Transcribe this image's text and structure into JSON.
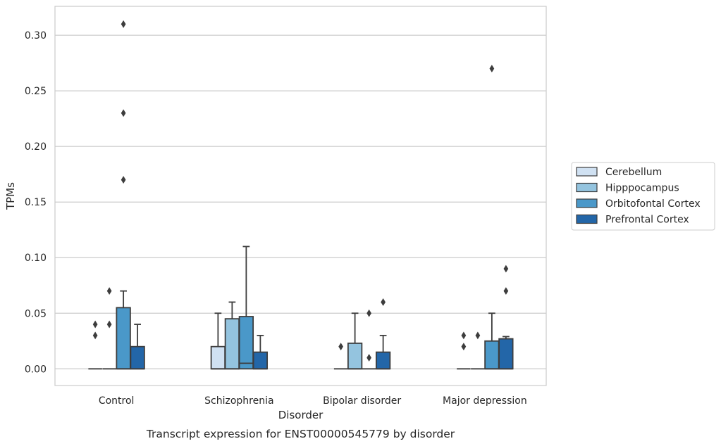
{
  "chart_data": {
    "type": "box",
    "xlabel": "Disorder",
    "ylabel": "TPMs",
    "caption": "Transcript expression for ENST00000545779 by disorder",
    "ylim": [
      -0.015,
      0.326
    ],
    "yticks": [
      "0.00",
      "0.05",
      "0.10",
      "0.15",
      "0.20",
      "0.25",
      "0.30"
    ],
    "grid": "horizontal",
    "legend_position": "right",
    "categories": [
      "Control",
      "Schizophrenia",
      "Bipolar disorder",
      "Major depression"
    ],
    "series": [
      {
        "name": "Cerebellum",
        "color": "#d0e1f2",
        "boxes": [
          {
            "whislo": 0,
            "q1": 0,
            "med": 0,
            "q3": 0,
            "whishi": 0,
            "fliers": [
              0.03,
              0.04
            ]
          },
          {
            "whislo": 0,
            "q1": 0,
            "med": 0,
            "q3": 0.02,
            "whishi": 0.05,
            "fliers": []
          },
          {
            "whislo": 0,
            "q1": 0,
            "med": 0,
            "q3": 0,
            "whishi": 0,
            "fliers": [
              0.02
            ]
          },
          {
            "whislo": 0,
            "q1": 0,
            "med": 0,
            "q3": 0,
            "whishi": 0,
            "fliers": [
              0.02,
              0.03
            ]
          }
        ]
      },
      {
        "name": "Hipppocampus",
        "color": "#94c4df",
        "boxes": [
          {
            "whislo": 0,
            "q1": 0,
            "med": 0,
            "q3": 0,
            "whishi": 0,
            "fliers": [
              0.04,
              0.07
            ]
          },
          {
            "whislo": 0,
            "q1": 0,
            "med": 0,
            "q3": 0.045,
            "whishi": 0.06,
            "fliers": []
          },
          {
            "whislo": 0,
            "q1": 0,
            "med": 0,
            "q3": 0.023,
            "whishi": 0.05,
            "fliers": []
          },
          {
            "whislo": 0,
            "q1": 0,
            "med": 0,
            "q3": 0,
            "whishi": 0,
            "fliers": [
              0.03
            ]
          }
        ]
      },
      {
        "name": "Orbitofontal Cortex",
        "color": "#4a98c9",
        "boxes": [
          {
            "whislo": 0,
            "q1": 0,
            "med": 0,
            "q3": 0.055,
            "whishi": 0.07,
            "fliers": [
              0.17,
              0.23,
              0.31
            ]
          },
          {
            "whislo": 0,
            "q1": 0,
            "med": 0.005,
            "q3": 0.047,
            "whishi": 0.11,
            "fliers": []
          },
          {
            "whislo": 0,
            "q1": 0,
            "med": 0,
            "q3": 0,
            "whishi": 0,
            "fliers": [
              0.01,
              0.05
            ]
          },
          {
            "whislo": 0,
            "q1": 0,
            "med": 0,
            "q3": 0.025,
            "whishi": 0.05,
            "fliers": [
              0.27
            ]
          }
        ]
      },
      {
        "name": "Prefrontal Cortex",
        "color": "#2366a8",
        "boxes": [
          {
            "whislo": 0,
            "q1": 0,
            "med": 0,
            "q3": 0.02,
            "whishi": 0.04,
            "fliers": []
          },
          {
            "whislo": 0,
            "q1": 0,
            "med": 0,
            "q3": 0.015,
            "whishi": 0.03,
            "fliers": []
          },
          {
            "whislo": 0,
            "q1": 0,
            "med": 0,
            "q3": 0.015,
            "whishi": 0.03,
            "fliers": [
              0.06
            ]
          },
          {
            "whislo": 0,
            "q1": 0,
            "med": 0,
            "q3": 0.027,
            "whishi": 0.029,
            "fliers": [
              0.09,
              0.07
            ]
          }
        ]
      }
    ]
  }
}
